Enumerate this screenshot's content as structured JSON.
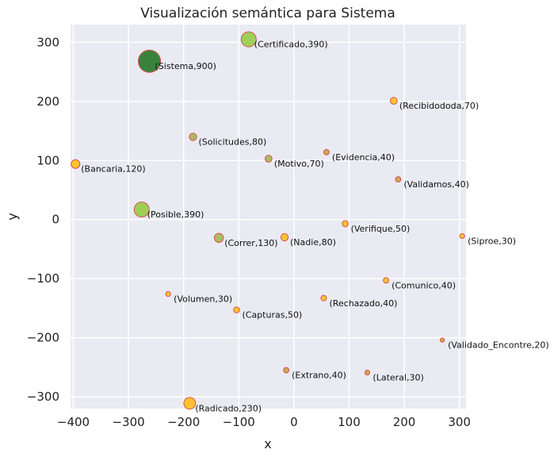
{
  "chart_data": {
    "type": "scatter",
    "title": "Visualización semántica para Sistema",
    "xlabel": "x",
    "ylabel": "y",
    "xlim": [
      -405,
      312
    ],
    "ylim": [
      -320,
      330
    ],
    "xticks": [
      -400,
      -300,
      -200,
      -100,
      0,
      100,
      200,
      300
    ],
    "yticks": [
      -300,
      -200,
      -100,
      0,
      100,
      200,
      300
    ],
    "grid": true,
    "points": [
      {
        "label": "(Sistema,900)",
        "x": -262,
        "y": 268,
        "size": 900,
        "color": "#2e7d32"
      },
      {
        "label": "(Certificado,390)",
        "x": -82,
        "y": 305,
        "size": 390,
        "color": "#9acd4e"
      },
      {
        "label": "(Recibidododa,70)",
        "x": 181,
        "y": 201,
        "size": 70,
        "color": "#ffc125"
      },
      {
        "label": "(Solicitudes,80)",
        "x": -183,
        "y": 140,
        "size": 80,
        "color": "#a8b85a"
      },
      {
        "label": "(Bancaria,120)",
        "x": -396,
        "y": 94,
        "size": 120,
        "color": "#ffc125"
      },
      {
        "label": "(Motivo,70)",
        "x": -46,
        "y": 103,
        "size": 70,
        "color": "#a8b85a"
      },
      {
        "label": "(Evidencia,40)",
        "x": 59,
        "y": 114,
        "size": 40,
        "color": "#c8a84a"
      },
      {
        "label": "(Validamos,40)",
        "x": 189,
        "y": 68,
        "size": 40,
        "color": "#c8a84a"
      },
      {
        "label": "(Posible,390)",
        "x": -276,
        "y": 17,
        "size": 390,
        "color": "#9acd4e"
      },
      {
        "label": "(Verifique,50)",
        "x": 93,
        "y": -7,
        "size": 50,
        "color": "#ffc125"
      },
      {
        "label": "(Siproe,30)",
        "x": 305,
        "y": -28,
        "size": 30,
        "color": "#ffc125"
      },
      {
        "label": "(Correr,130)",
        "x": -136,
        "y": -31,
        "size": 130,
        "color": "#a8b85a"
      },
      {
        "label": "(Nadie,80)",
        "x": -17,
        "y": -30,
        "size": 80,
        "color": "#ffc125"
      },
      {
        "label": "(Comunico,40)",
        "x": 167,
        "y": -103,
        "size": 40,
        "color": "#ffc125"
      },
      {
        "label": "(Volumen,30)",
        "x": -228,
        "y": -126,
        "size": 30,
        "color": "#ffc125"
      },
      {
        "label": "(Rechazado,40)",
        "x": 54,
        "y": -133,
        "size": 40,
        "color": "#ffc125"
      },
      {
        "label": "(Capturas,50)",
        "x": -104,
        "y": -153,
        "size": 50,
        "color": "#ffc125"
      },
      {
        "label": "(Validado_Encontre,20)",
        "x": 269,
        "y": -204,
        "size": 20,
        "color": "#c8a84a"
      },
      {
        "label": "(Extrano,40)",
        "x": -14,
        "y": -255,
        "size": 40,
        "color": "#c8a84a"
      },
      {
        "label": "(Lateral,30)",
        "x": 133,
        "y": -259,
        "size": 30,
        "color": "#c8a84a"
      },
      {
        "label": "(Radicado,230)",
        "x": -189,
        "y": -311,
        "size": 230,
        "color": "#ffc125"
      }
    ],
    "colors": {
      "plot_background": "#eaeaf2",
      "grid": "#ffffff",
      "marker_edge": "#d9534f"
    }
  }
}
